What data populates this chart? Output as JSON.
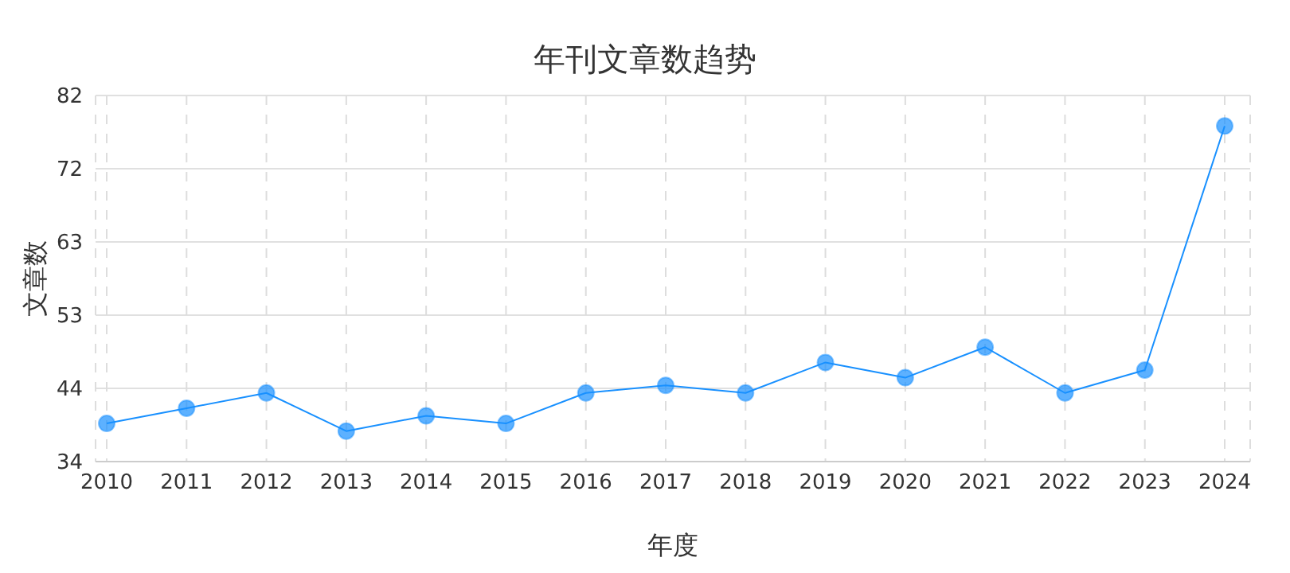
{
  "chart_data": {
    "type": "line",
    "title": "年刊文章数趋势",
    "xlabel": "年度",
    "ylabel": "文章数",
    "categories": [
      "2010",
      "2011",
      "2012",
      "2013",
      "2014",
      "2015",
      "2016",
      "2017",
      "2018",
      "2019",
      "2020",
      "2021",
      "2022",
      "2023",
      "2024"
    ],
    "series": [
      {
        "color": "#1890ff",
        "values": [
          39,
          41,
          43,
          38,
          40,
          39,
          43,
          44,
          43,
          47,
          45,
          49,
          43,
          46,
          78
        ]
      }
    ],
    "ylim": [
      34,
      82
    ],
    "yticks": [
      34,
      {
        "value": 43.6,
        "label": "44"
      },
      {
        "value": 53.2,
        "label": "53"
      },
      {
        "value": 62.8,
        "label": "63"
      },
      {
        "value": 72.4,
        "label": "72"
      },
      82
    ],
    "grid": true,
    "marker": "circle",
    "line_style": "solid",
    "legend": false
  }
}
